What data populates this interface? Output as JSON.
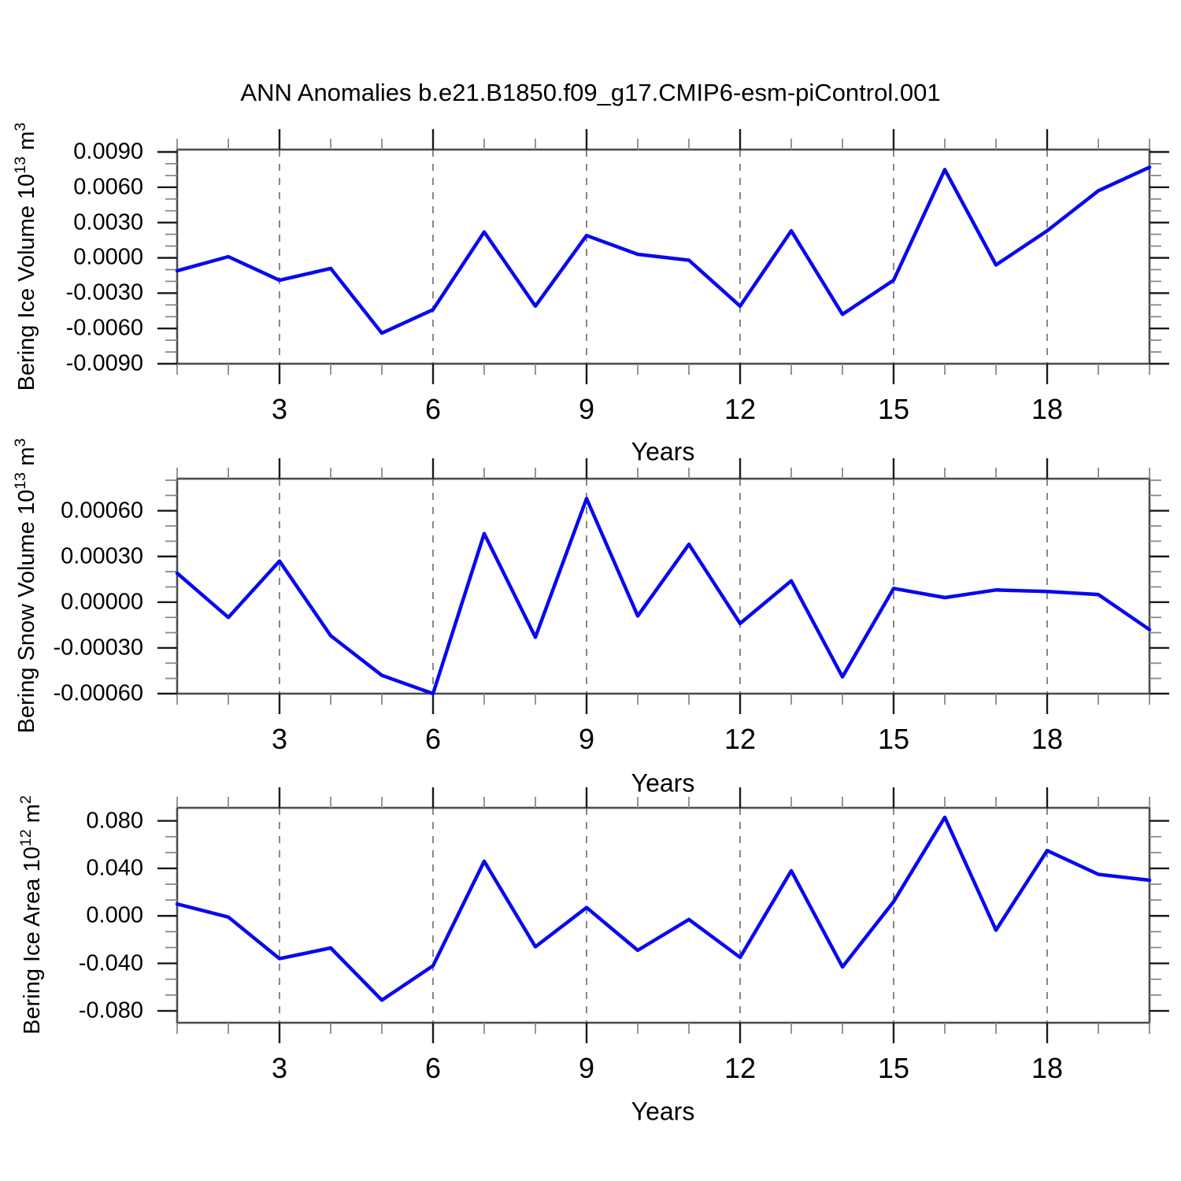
{
  "title": "ANN Anomalies b.e21.B1850.f09_g17.CMIP6-esm-piControl.001",
  "line_color": "#0808f0",
  "frame_color": "#4d4d4d",
  "major_tick_color": "#1a1a1a",
  "minor_tick_color": "#8a8a8a",
  "gridline_color": "#7a7a7a",
  "chart_data": [
    {
      "type": "line",
      "name": "bering-ice-volume",
      "ylabel": "Bering Ice Volume 10^13 m^3",
      "ylabel_parts": {
        "base": "Bering Ice Volume 10",
        "exp": "13",
        "unit": " m",
        "unit_exp": "3"
      },
      "xlabel": "Years",
      "x": [
        1,
        2,
        3,
        4,
        5,
        6,
        7,
        8,
        9,
        10,
        11,
        12,
        13,
        14,
        15,
        16,
        17,
        18,
        19,
        20
      ],
      "values": [
        -0.0011,
        0.0001,
        -0.0019,
        -0.0009,
        -0.0064,
        -0.0044,
        0.0022,
        -0.0041,
        0.0019,
        0.0003,
        -0.0002,
        -0.0041,
        0.0023,
        -0.0048,
        -0.0019,
        0.0075,
        -0.0006,
        0.0023,
        0.0057,
        0.0077
      ],
      "xlim": [
        1,
        20
      ],
      "ylim": [
        -0.009,
        0.0092
      ],
      "yticks": [
        0.009,
        0.006,
        0.003,
        0.0,
        -0.003,
        -0.006,
        -0.009
      ],
      "ytick_labels": [
        "0.0090",
        "0.0060",
        "0.0030",
        "0.0000",
        "-0.0030",
        "-0.0060",
        "-0.0090"
      ],
      "ytick_step": 0.003,
      "grid_x": [
        3,
        6,
        9,
        12,
        15,
        18
      ],
      "xtick_labels": [
        "3",
        "6",
        "9",
        "12",
        "15",
        "18"
      ],
      "grid": "vertical-dashed",
      "legend": "none"
    },
    {
      "type": "line",
      "name": "bering-snow-volume",
      "ylabel": "Bering Snow Volume 10^13 m^3",
      "ylabel_parts": {
        "base": "Bering Snow Volume 10",
        "exp": "13",
        "unit": " m",
        "unit_exp": "3"
      },
      "xlabel": "Years",
      "x": [
        1,
        2,
        3,
        4,
        5,
        6,
        7,
        8,
        9,
        10,
        11,
        12,
        13,
        14,
        15,
        16,
        17,
        18,
        19,
        20
      ],
      "values": [
        0.00019,
        -0.0001,
        0.00027,
        -0.00022,
        -0.00048,
        -0.0006,
        0.00045,
        -0.00023,
        0.00068,
        -9e-05,
        0.00038,
        -0.00014,
        0.00014,
        -0.00049,
        9e-05,
        3e-05,
        8e-05,
        7e-05,
        5e-05,
        -0.00018
      ],
      "xlim": [
        1,
        20
      ],
      "ylim": [
        -0.0006,
        0.00081
      ],
      "yticks": [
        0.0006,
        0.0003,
        0.0,
        -0.0003,
        -0.0006
      ],
      "ytick_labels": [
        "0.00060",
        "0.00030",
        "0.00000",
        "-0.00030",
        "-0.00060"
      ],
      "ytick_step": 0.0003,
      "grid_x": [
        3,
        6,
        9,
        12,
        15,
        18
      ],
      "xtick_labels": [
        "3",
        "6",
        "9",
        "12",
        "15",
        "18"
      ],
      "grid": "vertical-dashed",
      "legend": "none"
    },
    {
      "type": "line",
      "name": "bering-ice-area",
      "ylabel": "Bering Ice Area 10^12 m^2",
      "ylabel_parts": {
        "base": "Bering Ice Area 10",
        "exp": "12",
        "unit": " m",
        "unit_exp": "2"
      },
      "xlabel": "Years",
      "x": [
        1,
        2,
        3,
        4,
        5,
        6,
        7,
        8,
        9,
        10,
        11,
        12,
        13,
        14,
        15,
        16,
        17,
        18,
        19,
        20
      ],
      "values": [
        0.01,
        -0.001,
        -0.036,
        -0.027,
        -0.071,
        -0.042,
        0.046,
        -0.026,
        0.007,
        -0.029,
        -0.003,
        -0.035,
        0.038,
        -0.043,
        0.012,
        0.083,
        -0.012,
        0.055,
        0.035,
        0.03
      ],
      "xlim": [
        1,
        20
      ],
      "ylim": [
        -0.09,
        0.091
      ],
      "yticks": [
        0.08,
        0.04,
        0.0,
        -0.04,
        -0.08
      ],
      "ytick_labels": [
        "0.080",
        "0.040",
        "0.000",
        "-0.040",
        "-0.080"
      ],
      "ytick_step": 0.04,
      "grid_x": [
        3,
        6,
        9,
        12,
        15,
        18
      ],
      "xtick_labels": [
        "3",
        "6",
        "9",
        "12",
        "15",
        "18"
      ],
      "grid": "vertical-dashed",
      "legend": "none"
    }
  ]
}
